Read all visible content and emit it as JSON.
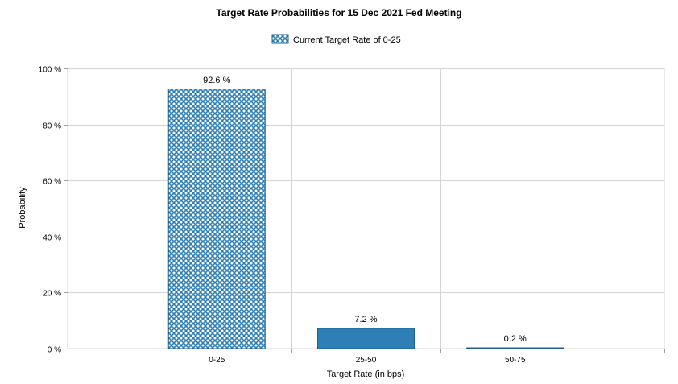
{
  "chart_data": {
    "type": "bar",
    "title": "Target Rate Probabilities for 15 Dec 2021 Fed Meeting",
    "xlabel": "Target Rate (in bps)",
    "ylabel": "Probability",
    "categories": [
      "0-25",
      "25-50",
      "50-75"
    ],
    "values": [
      92.6,
      7.2,
      0.2
    ],
    "data_labels": [
      "92.6 %",
      "7.2 %",
      "0.2 %"
    ],
    "ylim": [
      0,
      100
    ],
    "yticks": [
      0,
      20,
      40,
      60,
      80,
      100
    ],
    "ytick_labels": [
      "0 %",
      "20 %",
      "40 %",
      "60 %",
      "80 %",
      "100 %"
    ],
    "grid": true,
    "legend": {
      "placement": "top-center",
      "entries": [
        "Current Target Rate of 0-25"
      ]
    },
    "highlighted_category": "0-25",
    "colors": {
      "bar": "#2e7fb5",
      "bar_border": "#1f5f8b",
      "hatch_bg": "#ffffff",
      "grid": "#d4d4d4",
      "axis": "#a0a0a0"
    }
  }
}
